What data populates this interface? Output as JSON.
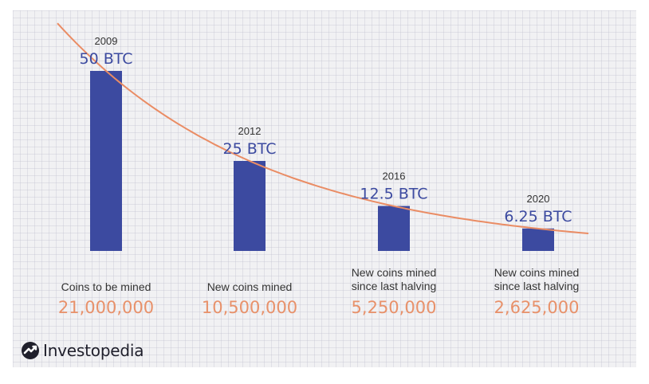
{
  "brand": {
    "name": "Investopedia",
    "icon": "investopedia-logo-icon"
  },
  "colors": {
    "bar": "#3c4aa0",
    "curve": "#ea8c64",
    "amount": "#e8916a",
    "background": "#f1f1f3"
  },
  "chart_data": {
    "type": "bar",
    "title": "",
    "xlabel": "",
    "ylabel": "",
    "categories": [
      "2009",
      "2012",
      "2016",
      "2020"
    ],
    "values": [
      50,
      25,
      12.5,
      6.25
    ],
    "value_labels": [
      "50 BTC",
      "25 BTC",
      "12.5 BTC",
      "6.25 BTC"
    ],
    "captions": [
      [
        "Coins to be mined"
      ],
      [
        "New coins mined"
      ],
      [
        "New coins mined",
        "since last halving"
      ],
      [
        "New coins mined",
        "since last halving"
      ]
    ],
    "amounts": [
      "21,000,000",
      "10,500,000",
      "5,250,000",
      "2,625,000"
    ],
    "ylim": [
      0,
      50
    ],
    "grid": true,
    "trend_curve": true
  }
}
